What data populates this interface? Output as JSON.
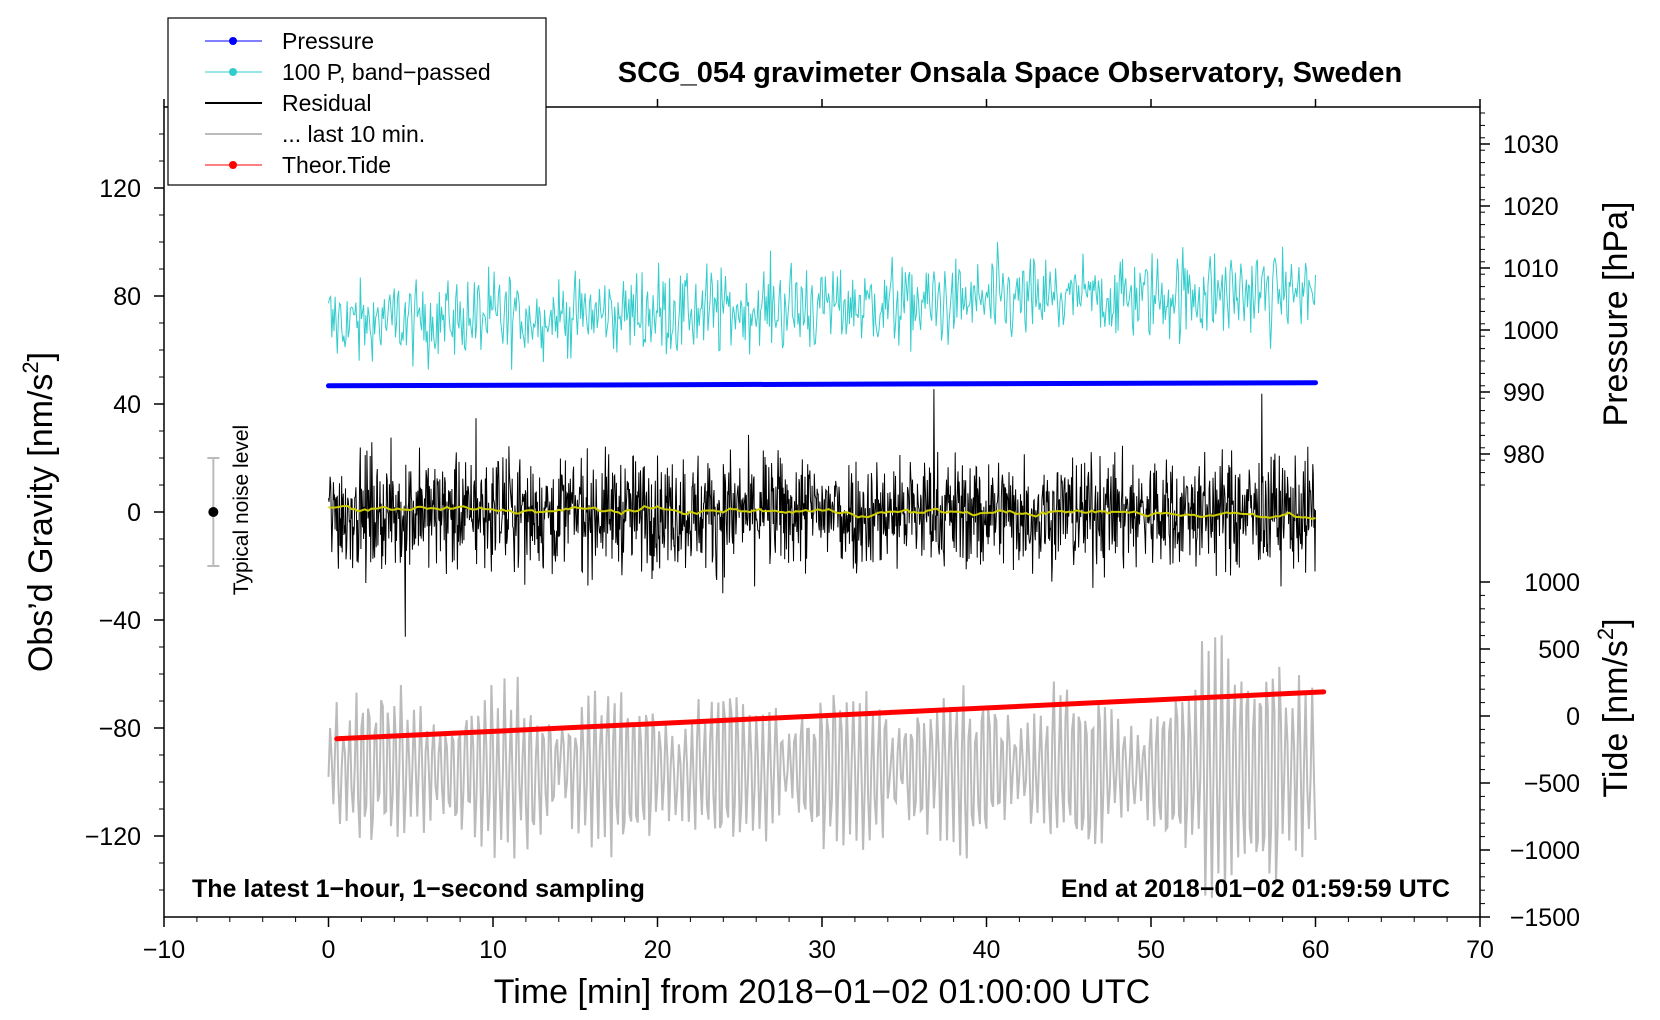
{
  "chart_data": {
    "type": "line",
    "title": "SCG_054 gravimeter Onsala Space Observatory, Sweden",
    "xlabel": "Time [min] from 2018−01−02 01:00:00 UTC",
    "ylabel_left_main": "Obs’d Gravity [nm/s",
    "ylabel_left_sup": "2",
    "ylabel_left_close": "]",
    "ylabel_right_top": "Pressure [hPa]",
    "ylabel_right_bottom_main": "Tide [nm/s",
    "ylabel_right_bottom_sup": "2",
    "ylabel_right_bottom_close": "]",
    "xlim": [
      -10,
      70
    ],
    "ylim": [
      -150,
      150
    ],
    "pressure_axis": {
      "ticks": [
        980,
        990,
        1000,
        1010,
        1020,
        1030
      ],
      "labels": [
        "980",
        "990",
        "1000",
        "1010",
        "1020",
        "1030"
      ]
    },
    "tide_axis": {
      "ticks": [
        -1500,
        -1000,
        -500,
        0,
        500,
        1000
      ],
      "labels": [
        "−1500",
        "−1000",
        "−500",
        "0",
        "500",
        "1000"
      ]
    },
    "x_ticks": [
      -10,
      0,
      10,
      20,
      30,
      40,
      50,
      60,
      70
    ],
    "x_tick_labels": [
      "−10",
      "0",
      "10",
      "20",
      "30",
      "40",
      "50",
      "60",
      "70"
    ],
    "y_ticks": [
      -120,
      -80,
      -40,
      0,
      40,
      80,
      120
    ],
    "y_tick_labels": [
      "−120",
      "−80",
      "−40",
      "0",
      "40",
      "80",
      "120"
    ],
    "legend": {
      "position": "top-left",
      "entries": [
        {
          "label": "Pressure",
          "color": "#0000ff",
          "marker": true
        },
        {
          "label": "100 P, band−passed",
          "color": "#33cccc",
          "marker": true
        },
        {
          "label": "Residual",
          "color": "#000000",
          "marker": false
        },
        {
          "label": "... last 10 min.",
          "color": "#bbbbbb",
          "marker": false
        },
        {
          "label": "Theor.Tide",
          "color": "#ff0000",
          "marker": true
        }
      ]
    },
    "series": [
      {
        "name": "Pressure",
        "color": "#0000ff",
        "x": [
          0,
          60
        ],
        "y_pressure_hPa": [
          991,
          991.5
        ]
      },
      {
        "name": "100 P, band-passed",
        "color": "#33cccc",
        "x_range": [
          0,
          60
        ],
        "gravity_mean": 78,
        "noise_amplitude": 12
      },
      {
        "name": "Residual",
        "color": "#000000",
        "x_range": [
          0,
          60
        ],
        "gravity_mean": 0,
        "noise_amplitude": 25
      },
      {
        "name": "Residual smoothed",
        "color": "#cccc00",
        "x_range": [
          0,
          60
        ],
        "gravity_mean": 0
      },
      {
        "name": "... last 10 min.",
        "color": "#bbbbbb",
        "x_range": [
          0,
          60
        ],
        "gravity_mean": -95,
        "noise_amplitude": 25
      },
      {
        "name": "Theor.Tide",
        "color": "#ff0000",
        "x": [
          0.5,
          60.5
        ],
        "y_tide_nms2": [
          -170,
          180
        ]
      }
    ],
    "noise_bar": {
      "label": "Typical noise level",
      "x": -7,
      "y": 0,
      "half_range": 20
    },
    "annotations": {
      "bottom_left": "The latest 1−hour, 1−second sampling",
      "bottom_right": "End at 2018−01−02 01:59:59 UTC"
    }
  }
}
